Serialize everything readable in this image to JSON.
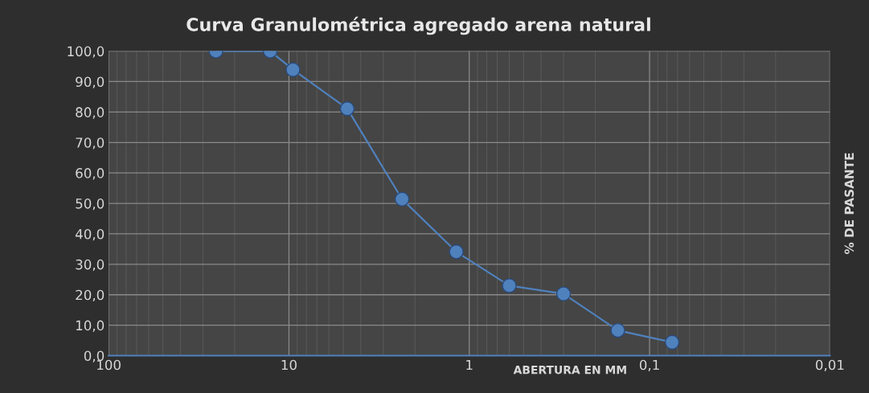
{
  "chart_data": {
    "type": "line",
    "title": "Curva Granulométrica agregado arena natural",
    "xlabel": "ABERTURA EN MM",
    "ylabel": "% DE PASANTE",
    "x": [
      25.4,
      12.7,
      9.5,
      4.75,
      2.36,
      1.18,
      0.6,
      0.3,
      0.15,
      0.075
    ],
    "series": [
      {
        "color": "#4f81bd",
        "values": [
          100.0,
          100.0,
          93.9,
          81.1,
          51.4,
          34.1,
          23.0,
          20.3,
          8.3,
          4.4
        ]
      }
    ],
    "log": "x",
    "xlim": [
      100,
      0.01
    ],
    "xticks": [
      100,
      10,
      1,
      {
        "value": 0.1,
        "label": "0,1"
      },
      {
        "value": 0.01,
        "label": "0,01"
      }
    ],
    "ylim": [
      0,
      100
    ],
    "yticks": [
      {
        "value": 0,
        "label": "0,0"
      },
      {
        "value": 10,
        "label": "10,0"
      },
      {
        "value": 20,
        "label": "20,0"
      },
      {
        "value": 30,
        "label": "30,0"
      },
      {
        "value": 40,
        "label": "40,0"
      },
      {
        "value": 50,
        "label": "50,0"
      },
      {
        "value": 60,
        "label": "60,0"
      },
      {
        "value": 70,
        "label": "70,0"
      },
      {
        "value": 80,
        "label": "80,0"
      },
      {
        "value": 90,
        "label": "90,0"
      },
      {
        "value": 100,
        "label": "100,0"
      }
    ],
    "grid": true,
    "marker": "circle",
    "line_style": "solid",
    "legend": false
  }
}
